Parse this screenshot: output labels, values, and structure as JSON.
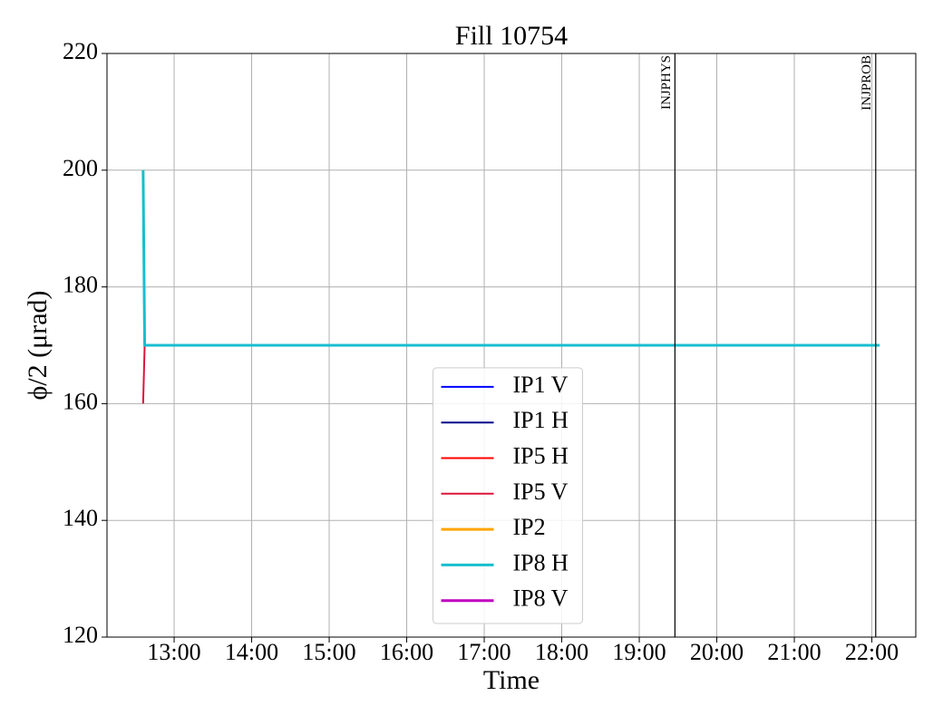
{
  "chart_data": {
    "type": "line",
    "title": "Fill 10754",
    "x_label": "Time",
    "y_label": "ϕ/2 (μrad)",
    "x": [
      12.6,
      12.62,
      22.1
    ],
    "series": [
      {
        "name": "IP1 V",
        "color": "#0000ff",
        "width": 2,
        "values": [
          null,
          null,
          null
        ]
      },
      {
        "name": "IP1 H",
        "color": "#00008b",
        "width": 2,
        "values": [
          null,
          null,
          null
        ]
      },
      {
        "name": "IP5 H",
        "color": "#ff0000",
        "width": 2,
        "values": [
          null,
          null,
          null
        ]
      },
      {
        "name": "IP5 V",
        "color": "#dc143c",
        "width": 2,
        "values": [
          160,
          170,
          170
        ]
      },
      {
        "name": "IP2",
        "color": "#ffa500",
        "width": 3,
        "values": [
          null,
          null,
          null
        ]
      },
      {
        "name": "IP8 H",
        "color": "#17becf",
        "width": 3,
        "values": [
          200,
          170,
          170
        ]
      },
      {
        "name": "IP8 V",
        "color": "#c000c0",
        "width": 3,
        "values": [
          null,
          null,
          null
        ]
      }
    ],
    "vlines": [
      {
        "x": 19.46,
        "label": "INJPHYS"
      },
      {
        "x": 22.05,
        "label": "INJPROB"
      }
    ],
    "xlim": [
      12.134,
      22.567
    ],
    "xticks": [
      {
        "value": 13,
        "label": "13:00"
      },
      {
        "value": 14,
        "label": "14:00"
      },
      {
        "value": 15,
        "label": "15:00"
      },
      {
        "value": 16,
        "label": "16:00"
      },
      {
        "value": 17,
        "label": "17:00"
      },
      {
        "value": 18,
        "label": "18:00"
      },
      {
        "value": 19,
        "label": "19:00"
      },
      {
        "value": 20,
        "label": "20:00"
      },
      {
        "value": 21,
        "label": "21:00"
      },
      {
        "value": 22,
        "label": "22:00"
      }
    ],
    "ylim": [
      120,
      220
    ],
    "yticks": [
      120,
      140,
      160,
      180,
      200,
      220
    ],
    "grid": true,
    "legend": "lower center"
  }
}
